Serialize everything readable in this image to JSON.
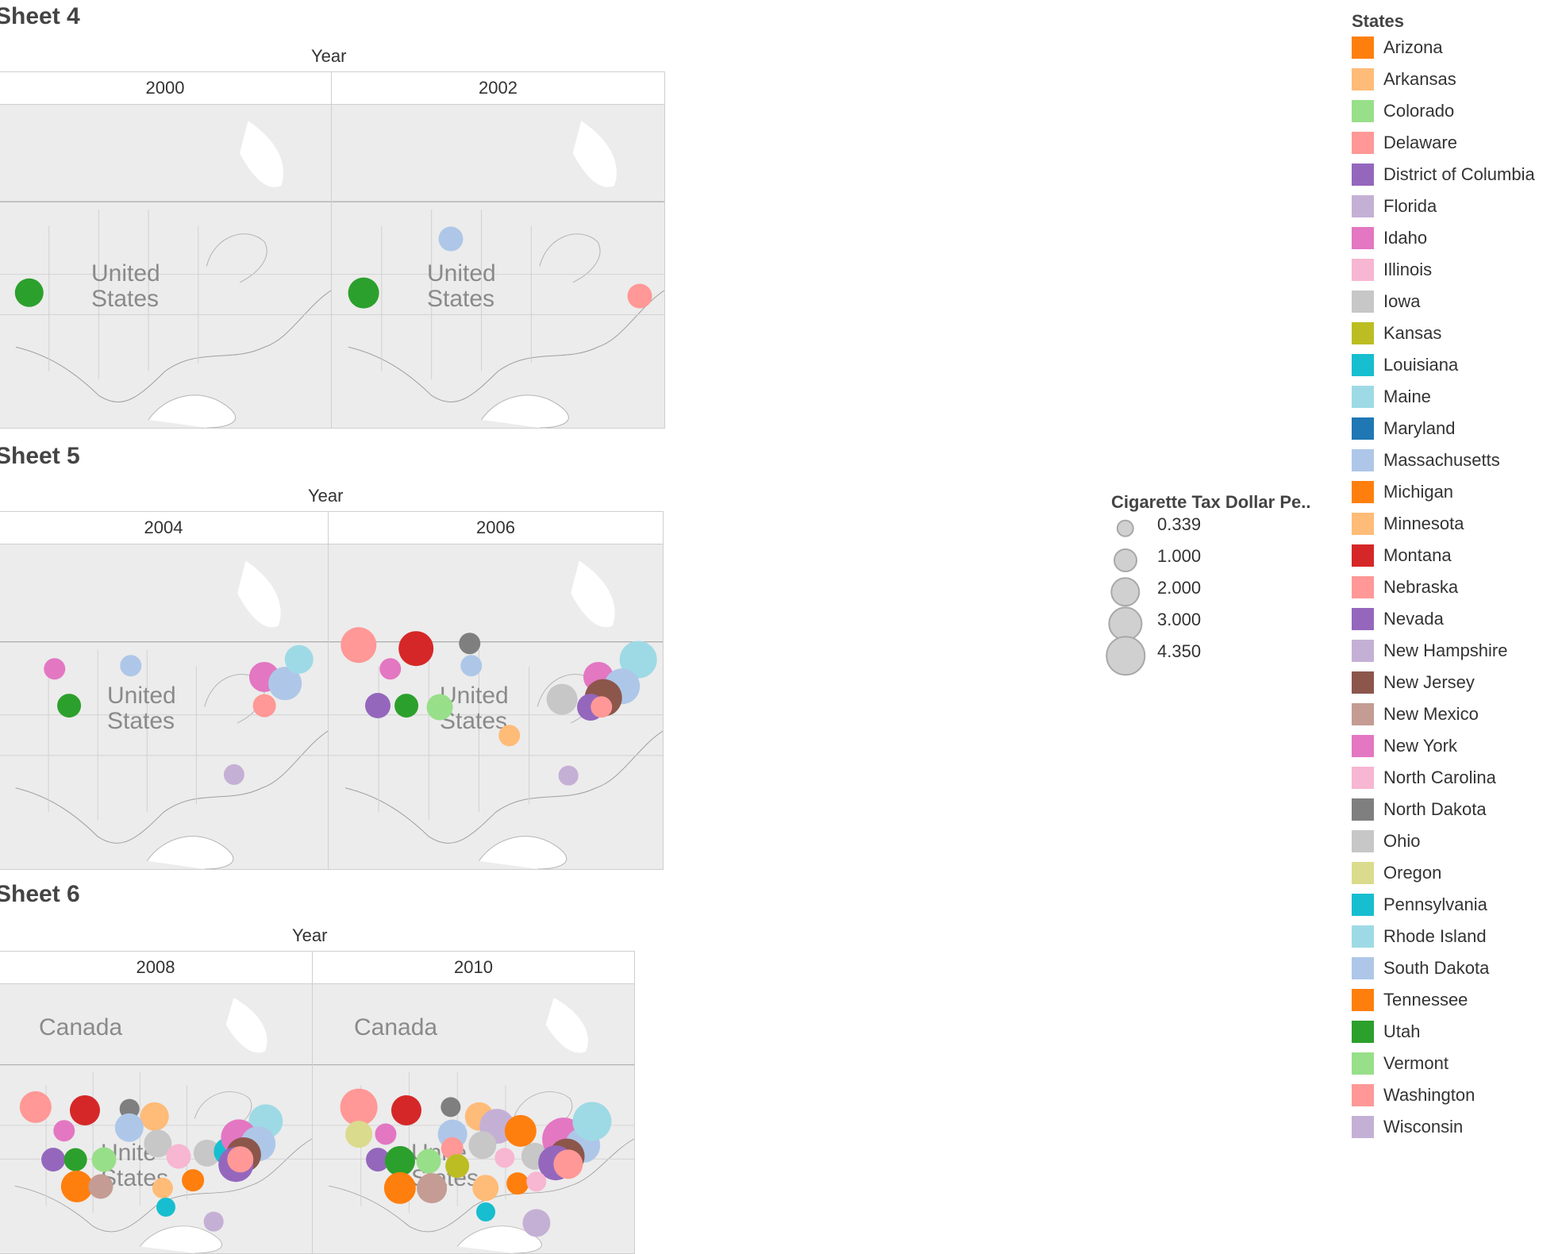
{
  "sheets": [
    {
      "title": "Sheet 4",
      "year_header": "Year",
      "columns": [
        {
          "year": "2000",
          "map_label_line1": "United",
          "map_label_line2": "States",
          "map_label2": "",
          "points": [
            {
              "state": "Utah",
              "tax": 1.5
            }
          ]
        },
        {
          "year": "2002",
          "map_label_line1": "United",
          "map_label_line2": "States",
          "map_label2": "",
          "points": [
            {
              "state": "South Dakota",
              "tax": 0.9
            },
            {
              "state": "Utah",
              "tax": 1.8
            },
            {
              "state": "Delaware",
              "tax": 0.9
            }
          ]
        }
      ]
    },
    {
      "title": "Sheet 5",
      "year_header": "Year",
      "columns": [
        {
          "year": "2004",
          "map_label_line1": "United",
          "map_label_line2": "States",
          "map_label2": "",
          "points": [
            {
              "state": "Idaho",
              "tax": 0.6
            },
            {
              "state": "South Dakota",
              "tax": 0.6
            },
            {
              "state": "Utah",
              "tax": 0.8
            },
            {
              "state": "New York",
              "tax": 1.7
            },
            {
              "state": "Massachusetts",
              "tax": 2.2
            },
            {
              "state": "Rhode Island",
              "tax": 1.5
            },
            {
              "state": "Washington",
              "tax": 0.7
            },
            {
              "state": "Florida",
              "tax": 0.5
            }
          ]
        },
        {
          "year": "2006",
          "map_label_line1": "United",
          "map_label_line2": "States",
          "map_label2": "",
          "points": [
            {
              "state": "Washington",
              "tax": 2.8
            },
            {
              "state": "Montana",
              "tax": 2.5
            },
            {
              "state": "North Dakota",
              "tax": 0.6
            },
            {
              "state": "Idaho",
              "tax": 0.6
            },
            {
              "state": "South Dakota",
              "tax": 0.6
            },
            {
              "state": "Nevada",
              "tax": 1.0
            },
            {
              "state": "Utah",
              "tax": 0.8
            },
            {
              "state": "Vermont",
              "tax": 1.1
            },
            {
              "state": "Arkansas",
              "tax": 0.6
            },
            {
              "state": "Ohio",
              "tax": 1.8
            },
            {
              "state": "Maine",
              "tax": 3.0
            },
            {
              "state": "New York",
              "tax": 1.7
            },
            {
              "state": "Massachusetts",
              "tax": 2.8
            },
            {
              "state": "New Jersey",
              "tax": 3.0
            },
            {
              "state": "Nevada",
              "tax": 1.2
            },
            {
              "state": "Delaware",
              "tax": 0.6
            },
            {
              "state": "Wisconsin",
              "tax": 0.4
            }
          ]
        }
      ]
    },
    {
      "title": "Sheet 6",
      "year_header": "Year",
      "columns": [
        {
          "year": "2008",
          "map_label_line1": "Unite",
          "map_label_line2": "States",
          "map_label2": "Canada",
          "points": [
            {
              "state": "Washington",
              "tax": 2.0
            },
            {
              "state": "Montana",
              "tax": 1.7
            },
            {
              "state": "North Dakota",
              "tax": 0.4
            },
            {
              "state": "Minnesota",
              "tax": 1.5
            },
            {
              "state": "Idaho",
              "tax": 0.6
            },
            {
              "state": "South Dakota",
              "tax": 1.5
            },
            {
              "state": "Iowa",
              "tax": 1.36
            },
            {
              "state": "Nevada",
              "tax": 0.8
            },
            {
              "state": "Utah",
              "tax": 0.7
            },
            {
              "state": "Vermont",
              "tax": 0.9
            },
            {
              "state": "North Carolina",
              "tax": 0.9
            },
            {
              "state": "Ohio",
              "tax": 1.25
            },
            {
              "state": "Pennsylvania",
              "tax": 1.35
            },
            {
              "state": "Rhode Island",
              "tax": 2.46
            },
            {
              "state": "New York",
              "tax": 2.75
            },
            {
              "state": "Massachusetts",
              "tax": 2.51
            },
            {
              "state": "New Jersey",
              "tax": 2.58
            },
            {
              "state": "District of Columbia",
              "tax": 2.5
            },
            {
              "state": "Delaware",
              "tax": 1.15
            },
            {
              "state": "Arizona",
              "tax": 2.0
            },
            {
              "state": "New Mexico",
              "tax": 0.91
            },
            {
              "state": "Minnesota",
              "tax": 0.5
            },
            {
              "state": "Tennessee",
              "tax": 0.62
            },
            {
              "state": "Louisiana",
              "tax": 0.36
            },
            {
              "state": "Wisconsin",
              "tax": 0.4
            }
          ]
        },
        {
          "year": "2010",
          "map_label_line1": "Unite",
          "map_label_line2": "States",
          "map_label2": "Canada",
          "points": [
            {
              "state": "Washington",
              "tax": 3.025
            },
            {
              "state": "Montana",
              "tax": 1.7
            },
            {
              "state": "North Dakota",
              "tax": 0.44
            },
            {
              "state": "Minnesota",
              "tax": 1.5
            },
            {
              "state": "Oregon",
              "tax": 1.18
            },
            {
              "state": "Idaho",
              "tax": 0.57
            },
            {
              "state": "South Dakota",
              "tax": 1.53
            },
            {
              "state": "Wisconsin",
              "tax": 2.52
            },
            {
              "state": "Michigan",
              "tax": 2.0
            },
            {
              "state": "Iowa",
              "tax": 1.36
            },
            {
              "state": "Nevada",
              "tax": 0.8
            },
            {
              "state": "Utah",
              "tax": 1.7
            },
            {
              "state": "Vermont",
              "tax": 0.9
            },
            {
              "state": "Delaware",
              "tax": 0.68
            },
            {
              "state": "Kansas",
              "tax": 0.79
            },
            {
              "state": "North Carolina",
              "tax": 0.45
            },
            {
              "state": "Ohio",
              "tax": 1.25
            },
            {
              "state": "Idaho",
              "tax": 4.35
            },
            {
              "state": "Massachusetts",
              "tax": 2.51
            },
            {
              "state": "Rhode Island",
              "tax": 3.46
            },
            {
              "state": "New Jersey",
              "tax": 2.7
            },
            {
              "state": "District of Columbia",
              "tax": 2.5
            },
            {
              "state": "Nebraska",
              "tax": 1.6
            },
            {
              "state": "Arizona",
              "tax": 2.0
            },
            {
              "state": "New Mexico",
              "tax": 1.66
            },
            {
              "state": "Arkansas",
              "tax": 1.15
            },
            {
              "state": "Tennessee",
              "tax": 0.62
            },
            {
              "state": "Louisiana",
              "tax": 0.36
            },
            {
              "state": "North Carolina",
              "tax": 0.45
            },
            {
              "state": "Wisconsin",
              "tax": 1.34
            }
          ]
        }
      ]
    }
  ],
  "size_legend": {
    "title": "Cigarette Tax Dollar Pe..",
    "items": [
      {
        "label": "0.339",
        "value": 0.339
      },
      {
        "label": "1.000",
        "value": 1.0
      },
      {
        "label": "2.000",
        "value": 2.0
      },
      {
        "label": "3.000",
        "value": 3.0
      },
      {
        "label": "4.350",
        "value": 4.35
      }
    ]
  },
  "color_legend": {
    "title": "States",
    "items": [
      {
        "label": "Arizona",
        "color": "#ff7f0e"
      },
      {
        "label": "Arkansas",
        "color": "#ffbb78"
      },
      {
        "label": "Colorado",
        "color": "#98df8a"
      },
      {
        "label": "Delaware",
        "color": "#ff9896"
      },
      {
        "label": "District of Columbia",
        "color": "#9467bd"
      },
      {
        "label": "Florida",
        "color": "#c5b0d5"
      },
      {
        "label": "Idaho",
        "color": "#e377c2"
      },
      {
        "label": "Illinois",
        "color": "#f7b6d2"
      },
      {
        "label": "Iowa",
        "color": "#c7c7c7"
      },
      {
        "label": "Kansas",
        "color": "#bcbd22"
      },
      {
        "label": "Louisiana",
        "color": "#17becf"
      },
      {
        "label": "Maine",
        "color": "#9edae5"
      },
      {
        "label": "Maryland",
        "color": "#1f77b4"
      },
      {
        "label": "Massachusetts",
        "color": "#aec7e8"
      },
      {
        "label": "Michigan",
        "color": "#ff7f0e"
      },
      {
        "label": "Minnesota",
        "color": "#ffbb78"
      },
      {
        "label": "Montana",
        "color": "#d62728"
      },
      {
        "label": "Nebraska",
        "color": "#ff9896"
      },
      {
        "label": "Nevada",
        "color": "#9467bd"
      },
      {
        "label": "New Hampshire",
        "color": "#c5b0d5"
      },
      {
        "label": "New Jersey",
        "color": "#8c564b"
      },
      {
        "label": "New Mexico",
        "color": "#c49c94"
      },
      {
        "label": "New York",
        "color": "#e377c2"
      },
      {
        "label": "North Carolina",
        "color": "#f7b6d2"
      },
      {
        "label": "North Dakota",
        "color": "#7f7f7f"
      },
      {
        "label": "Ohio",
        "color": "#c7c7c7"
      },
      {
        "label": "Oregon",
        "color": "#dbdb8d"
      },
      {
        "label": "Pennsylvania",
        "color": "#17becf"
      },
      {
        "label": "Rhode Island",
        "color": "#9edae5"
      },
      {
        "label": "South Dakota",
        "color": "#aec7e8"
      },
      {
        "label": "Tennessee",
        "color": "#ff7f0e"
      },
      {
        "label": "Utah",
        "color": "#2ca02c"
      },
      {
        "label": "Vermont",
        "color": "#98df8a"
      },
      {
        "label": "Washington",
        "color": "#ff9896"
      },
      {
        "label": "Wisconsin",
        "color": "#c5b0d5"
      }
    ]
  }
}
